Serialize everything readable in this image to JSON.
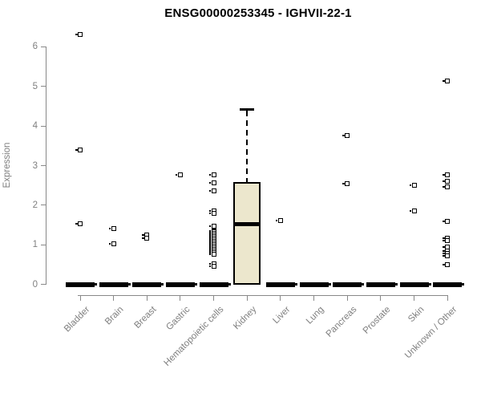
{
  "chart_data": {
    "type": "boxplot",
    "title": "ENSG00000253345 - IGHVII-22-1",
    "ylabel": "Expression",
    "xlabel": "",
    "ylim": [
      0,
      6
    ],
    "yticks": [
      0,
      1,
      2,
      3,
      4,
      5,
      6
    ],
    "grid": false,
    "legend": null,
    "colors": {
      "box_fill": "#ece7cd",
      "box_border": "#000000",
      "median": "#000000",
      "axis": "#888888",
      "tick_text": "#7f7f7f",
      "title_text": "#000000",
      "background": "#ffffff"
    },
    "categories": [
      {
        "label": "Bladder",
        "box": {
          "q1": 0,
          "median": 0,
          "q3": 0,
          "whisker_low": 0,
          "whisker_high": 0
        },
        "outliers": [
          6.31,
          3.39,
          1.53
        ]
      },
      {
        "label": "Brain",
        "box": {
          "q1": 0,
          "median": 0,
          "q3": 0,
          "whisker_low": 0,
          "whisker_high": 0
        },
        "outliers": [
          1.42,
          1.03
        ]
      },
      {
        "label": "Breast",
        "box": {
          "q1": 0,
          "median": 0,
          "q3": 0,
          "whisker_low": 0,
          "whisker_high": 0
        },
        "outliers": [
          1.25,
          1.17
        ]
      },
      {
        "label": "Gastric",
        "box": {
          "q1": 0,
          "median": 0,
          "q3": 0,
          "whisker_low": 0,
          "whisker_high": 0
        },
        "outliers": [
          2.76
        ]
      },
      {
        "label": "Hematopoietic cells",
        "box": {
          "q1": 0,
          "median": 0,
          "q3": 0,
          "whisker_low": 0,
          "whisker_high": 0
        },
        "outliers": [
          2.76,
          2.57,
          2.37,
          1.86,
          1.8,
          1.48,
          1.36,
          1.32,
          1.28,
          1.24,
          1.2,
          1.16,
          1.12,
          1.08,
          1.04,
          1.0,
          0.96,
          0.92,
          0.88,
          0.84,
          0.8,
          0.76,
          0.52,
          0.45
        ]
      },
      {
        "label": "Kidney",
        "box": {
          "q1": 0,
          "median": 1.53,
          "q3": 2.58,
          "whisker_low": 0,
          "whisker_high": 4.42
        },
        "outliers": []
      },
      {
        "label": "Liver",
        "box": {
          "q1": 0,
          "median": 0,
          "q3": 0,
          "whisker_low": 0,
          "whisker_high": 0
        },
        "outliers": [
          1.61
        ]
      },
      {
        "label": "Lung",
        "box": {
          "q1": 0,
          "median": 0,
          "q3": 0,
          "whisker_low": 0,
          "whisker_high": 0
        },
        "outliers": []
      },
      {
        "label": "Pancreas",
        "box": {
          "q1": 0,
          "median": 0,
          "q3": 0,
          "whisker_low": 0,
          "whisker_high": 0
        },
        "outliers": [
          3.75,
          2.54
        ]
      },
      {
        "label": "Prostate",
        "box": {
          "q1": 0,
          "median": 0,
          "q3": 0,
          "whisker_low": 0,
          "whisker_high": 0
        },
        "outliers": []
      },
      {
        "label": "Skin",
        "box": {
          "q1": 0,
          "median": 0,
          "q3": 0,
          "whisker_low": 0,
          "whisker_high": 0
        },
        "outliers": [
          2.5,
          1.85
        ]
      },
      {
        "label": "Unknown / Other",
        "box": {
          "q1": 0,
          "median": 0,
          "q3": 0,
          "whisker_low": 0,
          "whisker_high": 0
        },
        "outliers": [
          5.13,
          2.76,
          2.6,
          2.47,
          1.6,
          1.17,
          1.1,
          0.94,
          0.84,
          0.78,
          0.73,
          0.49
        ]
      }
    ]
  }
}
